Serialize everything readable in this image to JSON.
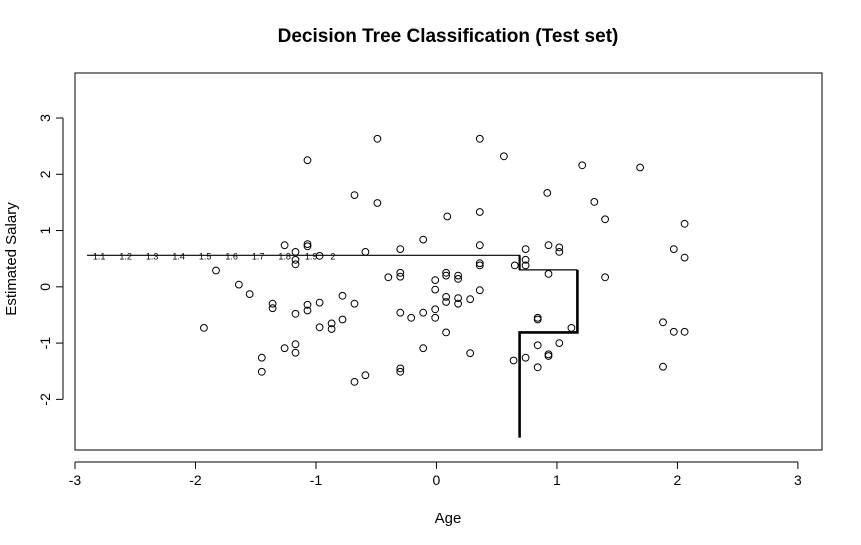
{
  "chart_data": {
    "type": "scatter",
    "title": "Decision Tree Classification (Test set)",
    "xlabel": "Age",
    "ylabel": "Estimated Salary",
    "xlim": [
      -3.0,
      3.2
    ],
    "ylim": [
      -2.9,
      3.8
    ],
    "x_ticks": [
      -3,
      -2,
      -1,
      0,
      1,
      2,
      3
    ],
    "y_ticks": [
      -2,
      -1,
      0,
      1,
      2,
      3
    ],
    "grid": false,
    "legend": "none",
    "series": [
      {
        "marker": "open-circle",
        "color": "#000000",
        "points": [
          [
            -1.07,
            2.25
          ],
          [
            -0.49,
            2.63
          ],
          [
            0.36,
            2.63
          ],
          [
            0.56,
            2.32
          ],
          [
            1.21,
            2.16
          ],
          [
            1.69,
            2.12
          ],
          [
            -0.68,
            1.63
          ],
          [
            -0.49,
            1.49
          ],
          [
            0.92,
            1.67
          ],
          [
            1.31,
            1.51
          ],
          [
            1.4,
            1.2
          ],
          [
            0.09,
            1.25
          ],
          [
            0.36,
            1.33
          ],
          [
            2.06,
            1.12
          ],
          [
            -0.11,
            0.84
          ],
          [
            -1.26,
            0.74
          ],
          [
            -1.07,
            0.72
          ],
          [
            -1.07,
            0.76
          ],
          [
            -1.17,
            0.62
          ],
          [
            -0.97,
            0.55
          ],
          [
            -0.59,
            0.62
          ],
          [
            -0.3,
            0.67
          ],
          [
            0.36,
            0.74
          ],
          [
            0.74,
            0.67
          ],
          [
            0.93,
            0.74
          ],
          [
            1.02,
            0.7
          ],
          [
            1.02,
            0.62
          ],
          [
            1.97,
            0.67
          ],
          [
            2.06,
            0.52
          ],
          [
            0.65,
            0.38
          ],
          [
            0.74,
            0.48
          ],
          [
            0.74,
            0.38
          ],
          [
            0.36,
            0.42
          ],
          [
            0.36,
            0.38
          ],
          [
            0.08,
            0.25
          ],
          [
            0.08,
            0.2
          ],
          [
            -0.3,
            0.25
          ],
          [
            -0.3,
            0.18
          ],
          [
            -0.4,
            0.17
          ],
          [
            -0.01,
            0.12
          ],
          [
            0.18,
            0.2
          ],
          [
            0.18,
            0.14
          ],
          [
            0.93,
            0.23
          ],
          [
            1.4,
            0.17
          ],
          [
            -1.83,
            0.29
          ],
          [
            -1.64,
            0.04
          ],
          [
            -1.55,
            -0.13
          ],
          [
            -1.17,
            0.48
          ],
          [
            -1.17,
            0.4
          ],
          [
            -0.01,
            -0.05
          ],
          [
            0.36,
            -0.06
          ],
          [
            0.08,
            -0.18
          ],
          [
            0.18,
            -0.2
          ],
          [
            0.28,
            -0.22
          ],
          [
            0.08,
            -0.27
          ],
          [
            0.18,
            -0.3
          ],
          [
            -0.01,
            -0.4
          ],
          [
            -0.11,
            -0.46
          ],
          [
            -0.21,
            -0.55
          ],
          [
            -0.3,
            -0.46
          ],
          [
            -0.01,
            -0.55
          ],
          [
            0.08,
            -0.81
          ],
          [
            -0.78,
            -0.16
          ],
          [
            -0.68,
            -0.3
          ],
          [
            -0.97,
            -0.28
          ],
          [
            -1.07,
            -0.32
          ],
          [
            -1.07,
            -0.42
          ],
          [
            -1.17,
            -0.48
          ],
          [
            -1.36,
            -0.3
          ],
          [
            -1.36,
            -0.38
          ],
          [
            -0.78,
            -0.58
          ],
          [
            -0.87,
            -0.65
          ],
          [
            -0.97,
            -0.72
          ],
          [
            -0.87,
            -0.75
          ],
          [
            -1.93,
            -0.73
          ],
          [
            -1.26,
            -1.09
          ],
          [
            -1.17,
            -1.02
          ],
          [
            -1.17,
            -1.17
          ],
          [
            -1.45,
            -1.26
          ],
          [
            -1.45,
            -1.51
          ],
          [
            -0.68,
            -1.69
          ],
          [
            -0.59,
            -1.57
          ],
          [
            -0.3,
            -1.45
          ],
          [
            -0.3,
            -1.51
          ],
          [
            -0.11,
            -1.09
          ],
          [
            0.28,
            -1.18
          ],
          [
            0.64,
            -1.31
          ],
          [
            0.74,
            -1.26
          ],
          [
            0.84,
            -1.43
          ],
          [
            0.84,
            -1.04
          ],
          [
            0.93,
            -1.2
          ],
          [
            0.93,
            -1.23
          ],
          [
            1.02,
            -1.0
          ],
          [
            0.84,
            -0.55
          ],
          [
            0.84,
            -0.58
          ],
          [
            1.12,
            -0.73
          ],
          [
            1.88,
            -0.63
          ],
          [
            1.97,
            -0.8
          ],
          [
            2.06,
            -0.8
          ],
          [
            1.88,
            -1.42
          ]
        ]
      }
    ],
    "boundary": {
      "thin_path": [
        [
          -2.9,
          0.56
        ],
        [
          0.69,
          0.56
        ],
        [
          0.69,
          0.3
        ],
        [
          1.17,
          0.3
        ]
      ],
      "thick_path": [
        [
          1.17,
          0.3
        ],
        [
          1.17,
          -0.81
        ],
        [
          0.69,
          -0.81
        ],
        [
          0.69,
          -2.68
        ]
      ],
      "thin_stub": [
        [
          0.69,
          0.56
        ],
        [
          0.69,
          0.3
        ]
      ]
    },
    "split_labels": {
      "y": 0.54,
      "items": [
        {
          "x": -2.8,
          "text": "1.1"
        },
        {
          "x": -2.58,
          "text": "1.2"
        },
        {
          "x": -2.36,
          "text": "1.3"
        },
        {
          "x": -2.14,
          "text": "1.4"
        },
        {
          "x": -1.92,
          "text": "1.5"
        },
        {
          "x": -1.7,
          "text": "1.6"
        },
        {
          "x": -1.48,
          "text": "1.7"
        },
        {
          "x": -1.26,
          "text": "1.8"
        },
        {
          "x": -1.04,
          "text": "1.9"
        },
        {
          "x": -0.86,
          "text": "2"
        }
      ]
    }
  }
}
